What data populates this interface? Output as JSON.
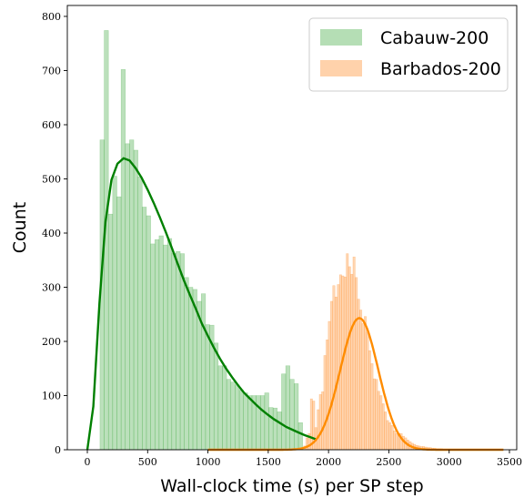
{
  "chart_data": {
    "type": "histogram",
    "xlabel": "Wall-clock time (s) per SP step",
    "ylabel": "Count",
    "xlim": [
      -100,
      3550
    ],
    "ylim": [
      0,
      810
    ],
    "xticks": [
      0,
      500,
      1000,
      1500,
      2000,
      2500,
      3000,
      3500
    ],
    "yticks": [
      0,
      100,
      200,
      300,
      400,
      500,
      600,
      700,
      800
    ],
    "legend_position": "top-right",
    "series": [
      {
        "name": "Cabauw-200",
        "color": "#2ca02c",
        "bin_width": 35,
        "bin_start": 105,
        "counts": [
          572,
          774,
          435,
          505,
          467,
          702,
          565,
          572,
          553,
          504,
          448,
          432,
          380,
          388,
          395,
          378,
          390,
          363,
          366,
          362,
          318,
          300,
          296,
          274,
          288,
          231,
          230,
          197,
          155,
          155,
          130,
          125,
          120,
          110,
          105,
          100,
          100,
          100,
          100,
          105,
          78,
          77,
          70,
          140,
          155,
          130,
          122,
          50
        ]
      },
      {
        "name": "Barbados-200",
        "color": "#ff7f0e",
        "bin_width": 18.6,
        "bin_start": 1793,
        "counts": [
          7,
          22,
          30,
          94,
          90,
          41,
          74,
          102,
          107,
          174,
          203,
          237,
          274,
          303,
          282,
          305,
          323,
          321,
          319,
          362,
          338,
          324,
          356,
          318,
          278,
          258,
          233,
          246,
          217,
          183,
          159,
          131,
          130,
          108,
          100,
          85,
          70,
          54,
          50,
          45,
          35,
          30,
          30,
          30,
          25,
          22,
          18,
          15,
          12,
          10,
          8,
          7,
          6,
          6,
          5,
          4,
          4,
          3,
          3,
          2,
          2,
          2,
          1,
          1,
          1,
          1
        ]
      }
    ],
    "fits": [
      {
        "series": "Cabauw-200",
        "color": "#008000",
        "kind": "lognormal",
        "x_range": [
          0,
          1900
        ],
        "x": [
          0,
          50,
          100,
          150,
          200,
          250,
          300,
          350,
          400,
          450,
          500,
          550,
          600,
          650,
          700,
          750,
          800,
          850,
          900,
          950,
          1000,
          1050,
          1100,
          1150,
          1200,
          1250,
          1300,
          1350,
          1400,
          1450,
          1500,
          1550,
          1600,
          1650,
          1700,
          1750,
          1800,
          1850,
          1900
        ],
        "y": [
          0,
          80,
          270,
          420,
          498,
          528,
          538,
          534,
          520,
          502,
          480,
          456,
          430,
          402,
          373,
          343,
          313,
          286,
          260,
          233,
          210,
          188,
          168,
          150,
          134,
          119,
          105,
          94,
          83,
          73,
          64,
          56,
          49,
          42,
          37,
          32,
          27,
          23,
          19
        ]
      },
      {
        "series": "Barbados-200",
        "color": "#ff8c00",
        "kind": "normal",
        "x_range": [
          1000,
          3450
        ],
        "mean": 2255,
        "std": 158,
        "peak": 243
      }
    ]
  }
}
